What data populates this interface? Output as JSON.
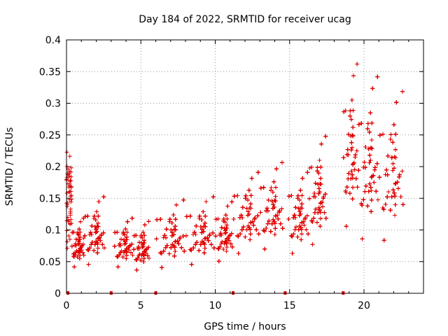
{
  "chart_data": {
    "type": "scatter",
    "title": "Day 184 of 2022, SRMTID for receiver ucag",
    "xlabel": "GPS time / hours",
    "ylabel": "SRMTID / TECUs",
    "xlim": [
      0,
      24
    ],
    "ylim": [
      0,
      0.4
    ],
    "xticks": [
      0,
      5,
      10,
      15,
      20
    ],
    "yticks": [
      0,
      0.05,
      0.1,
      0.15,
      0.2,
      0.25,
      0.3,
      0.35,
      0.4
    ],
    "xtick_labels": [
      "0",
      "5",
      "10",
      "15",
      "20"
    ],
    "ytick_labels": [
      "0",
      "0.05",
      "0.1",
      "0.15",
      "0.2",
      "0.25",
      "0.3",
      "0.35",
      "0.4"
    ],
    "grid": true,
    "marker": "+",
    "color": "#e00000",
    "series": [
      {
        "name": "SRMTID",
        "segments": [
          {
            "t_start": 0.0,
            "t_end": 0.35,
            "mean": 0.14,
            "spread": 0.035
          },
          {
            "t_start": 0.35,
            "t_end": 1.2,
            "mean": 0.07,
            "spread": 0.018
          },
          {
            "t_start": 1.2,
            "t_end": 2.6,
            "mean": 0.085,
            "spread": 0.025
          },
          {
            "t_start": 3.2,
            "t_end": 4.5,
            "mean": 0.07,
            "spread": 0.018
          },
          {
            "t_start": 4.5,
            "t_end": 5.6,
            "mean": 0.065,
            "spread": 0.018
          },
          {
            "t_start": 6.0,
            "t_end": 8.0,
            "mean": 0.08,
            "spread": 0.025
          },
          {
            "t_start": 8.0,
            "t_end": 10.0,
            "mean": 0.085,
            "spread": 0.025
          },
          {
            "t_start": 10.0,
            "t_end": 11.2,
            "mean": 0.085,
            "spread": 0.022
          },
          {
            "t_start": 11.2,
            "t_end": 13.0,
            "mean": 0.11,
            "spread": 0.03
          },
          {
            "t_start": 13.0,
            "t_end": 14.6,
            "mean": 0.12,
            "spread": 0.032
          },
          {
            "t_start": 14.9,
            "t_end": 16.3,
            "mean": 0.11,
            "spread": 0.03
          },
          {
            "t_start": 16.3,
            "t_end": 17.5,
            "mean": 0.14,
            "spread": 0.04
          },
          {
            "t_start": 18.6,
            "t_end": 19.6,
            "mean": 0.2,
            "spread": 0.06
          },
          {
            "t_start": 19.6,
            "t_end": 21.0,
            "mean": 0.18,
            "spread": 0.06
          },
          {
            "t_start": 21.0,
            "t_end": 22.7,
            "mean": 0.17,
            "spread": 0.055
          }
        ],
        "zero_markers": [
          0.1,
          3.0,
          6.0,
          11.2,
          14.7,
          18.6
        ]
      }
    ]
  }
}
